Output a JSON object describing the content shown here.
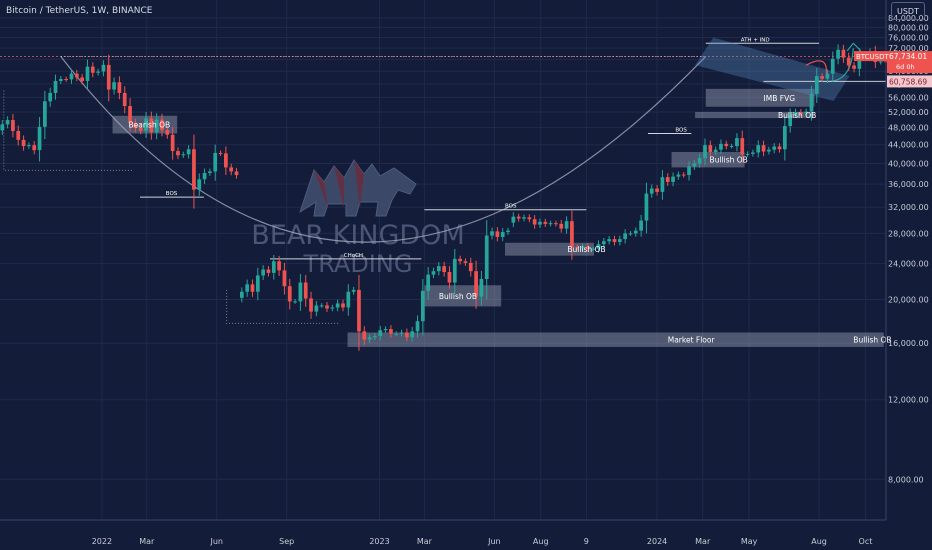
{
  "header": {
    "pair": "Bitcoin",
    "quote": "TetherUS",
    "interval": "1W",
    "exchange": "BINANCE",
    "currency_button": "USDT"
  },
  "watermark": {
    "line1": "BEAR KINGDOM",
    "line2": "TRADING"
  },
  "colors": {
    "background": "#131c38",
    "up": "#26a69a",
    "down": "#ef5350",
    "reference_line": "#e35a6a"
  },
  "chart_data": {
    "type": "candlestick",
    "symbol": "BTCUSDT",
    "y_scale": "log",
    "ylim": [
      6500,
      92000
    ],
    "y_ticks": [
      "84,000.00",
      "80,000.00",
      "76,000.00",
      "72,000.00",
      "68,000.00",
      "64,000.00",
      "60,000.00",
      "56,000.00",
      "52,000.00",
      "48,000.00",
      "44,000.00",
      "40,000.00",
      "36,000.00",
      "32,000.00",
      "28,000.00",
      "24,000.00",
      "20,000.00",
      "16,000.00",
      "12,000.00",
      "8,000.00"
    ],
    "y_tick_values": [
      84000,
      80000,
      76000,
      72000,
      68000,
      64000,
      60000,
      56000,
      52000,
      48000,
      44000,
      40000,
      36000,
      32000,
      28000,
      24000,
      20000,
      16000,
      12000,
      8000
    ],
    "x_labels": [
      {
        "label": "2022",
        "date": "2022-01-01"
      },
      {
        "label": "Mar",
        "date": "2022-03-01"
      },
      {
        "label": "Jun",
        "date": "2022-06-01"
      },
      {
        "label": "Sep",
        "date": "2022-09-01"
      },
      {
        "label": "2023",
        "date": "2023-01-01"
      },
      {
        "label": "Mar",
        "date": "2023-03-01"
      },
      {
        "label": "Jun",
        "date": "2023-06-01"
      },
      {
        "label": "Aug",
        "date": "2023-08-01"
      },
      {
        "label": "9",
        "date": "2023-09-30"
      },
      {
        "label": "2024",
        "date": "2024-01-01"
      },
      {
        "label": "Mar",
        "date": "2024-03-01"
      },
      {
        "label": "May",
        "date": "2024-05-01"
      },
      {
        "label": "Aug",
        "date": "2024-08-01"
      },
      {
        "label": "Oct",
        "date": "2024-10-01"
      }
    ],
    "x_range": [
      "2021-08-20",
      "2024-10-28"
    ],
    "price_labels": [
      {
        "symbol": "BTCUSDT",
        "price": "67,734.01",
        "countdown": "6d 0h",
        "value": 67734
      },
      {
        "price": "60,758.69",
        "value": 60758.69
      }
    ],
    "weekly_closes": [
      {
        "start": "2021-08-23",
        "closes": [
          48800,
          49900,
          47200,
          45100,
          43700,
          43900,
          42800,
          48200,
          54900,
          57300,
          60900,
          61500,
          61400,
          63200,
          62000,
          60900,
          65500,
          63500,
          63900,
          66100,
          58300,
          60500,
          57300,
          53600,
          49200,
          47900,
          47200,
          50300,
          46900,
          50000,
          47400,
          46300,
          42600,
          41700,
          41900,
          43000,
          35000,
          36900,
          38100,
          38400,
          42200,
          42100,
          39200,
          38400,
          37700
        ]
      },
      {
        "start": "2022-07-04",
        "closes": [
          20800,
          21600,
          20800,
          22600,
          23300,
          22900,
          24300,
          23200,
          21400,
          19800,
          19800,
          21800,
          20100,
          18800,
          19400,
          19400,
          19100,
          19200,
          19600,
          19200,
          20800,
          21000,
          17000,
          16300,
          16500,
          16600,
          17100,
          17200,
          16800,
          16800,
          16900,
          16500,
          17000,
          17900,
          20900,
          22700,
          23100,
          23700,
          23000,
          21800,
          24600,
          24300,
          24100,
          23100,
          20300,
          22200,
          27700,
          28300,
          27500,
          28200,
          28400
        ]
      },
      {
        "start": "2023-06-26",
        "closes": [
          30500,
          30200,
          30400,
          30100,
          29300,
          29700,
          29400,
          29500,
          29400,
          28700,
          29800,
          26100,
          26000,
          26200,
          25900,
          25900,
          26500,
          26900,
          27200,
          26800,
          27200,
          28000,
          28000,
          28400,
          29900,
          34300,
          35200,
          34600,
          37300,
          36400,
          37400,
          37800,
          37700,
          39400,
          40000,
          41100,
          43900,
          42400,
          42900,
          44200,
          43700,
          43700,
          45500,
          41900,
          42000,
          42300,
          43900,
          42500,
          42900,
          43600,
          43000,
          48400,
          51300,
          52000,
          51600,
          52100,
          57000,
          62400,
          61600,
          63200,
          68200,
          71400,
          68600,
          65900,
          64800,
          69500,
          69600,
          70700,
          67100,
          67300,
          67000,
          68800,
          62500,
          63800,
          63600,
          67600,
          69800,
          69100,
          69300,
          67700,
          66200,
          63900,
          60600,
          60000,
          57900,
          64500,
          67734
        ]
      }
    ],
    "annotations": [
      {
        "kind": "zone",
        "label": "Bearish OB",
        "label_pos": "right"
      },
      {
        "kind": "level",
        "label": "BOS"
      },
      {
        "kind": "level",
        "label": "CHoCH"
      },
      {
        "kind": "zone",
        "label": "Bullish OB",
        "label_pos": "right"
      },
      {
        "kind": "level",
        "label": "BOS"
      },
      {
        "kind": "zone",
        "label": "Bullish OB",
        "label_pos": "right"
      },
      {
        "kind": "zone",
        "label": "Market Floor",
        "label_pos": "center"
      },
      {
        "kind": "zone",
        "label": "Bullish OB",
        "label_pos": "right"
      },
      {
        "kind": "level",
        "label": "BOS"
      },
      {
        "kind": "zone",
        "label": "Bullish OB",
        "label_pos": "right"
      },
      {
        "kind": "zone",
        "label": "Bullish OB",
        "label_pos": "right"
      },
      {
        "kind": "level",
        "label": "ATH + IND"
      },
      {
        "kind": "zone",
        "label": "IMB FVG",
        "label_pos": "left"
      }
    ]
  }
}
